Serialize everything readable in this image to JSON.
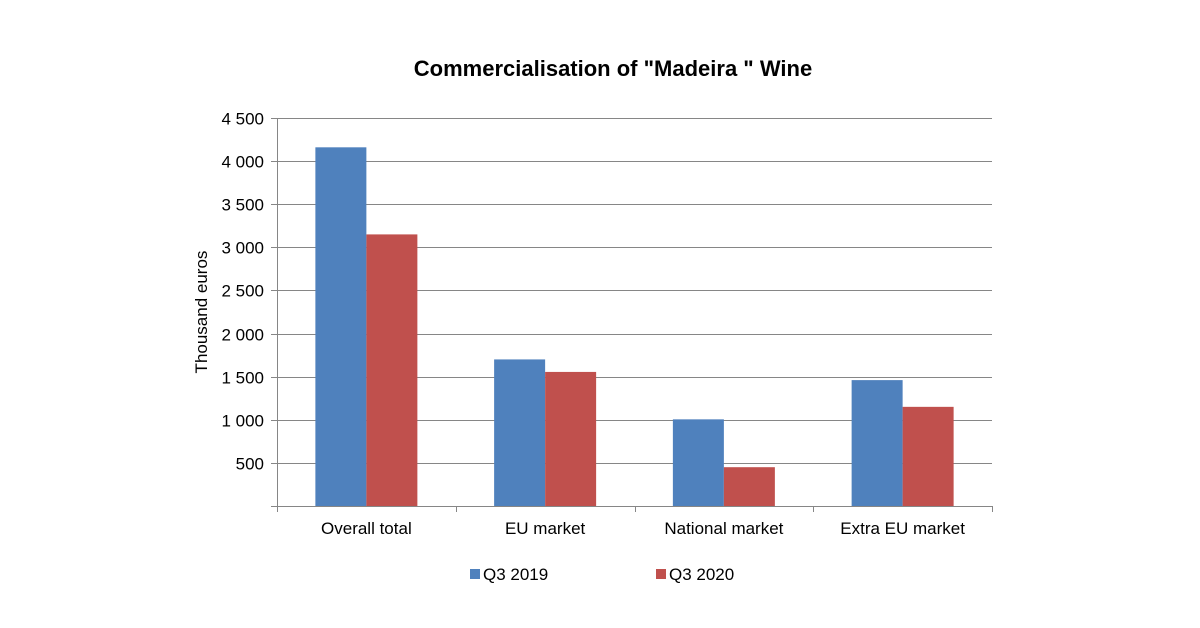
{
  "chart_data": {
    "type": "bar",
    "title": "Commercialisation of \"Madeira \" Wine",
    "ylabel": "Thousand euros",
    "xlabel": "",
    "categories": [
      "Overall total",
      "EU market",
      "National market",
      "Extra EU market"
    ],
    "series": [
      {
        "name": "Q3 2019",
        "color": "#4F81BD",
        "values": [
          4160,
          1700,
          1005,
          1460
        ]
      },
      {
        "name": "Q3 2020",
        "color": "#C0504D",
        "values": [
          3150,
          1555,
          450,
          1150
        ]
      }
    ],
    "ylim": [
      0,
      4500
    ],
    "yticks": [
      {
        "value": 500,
        "label": "500"
      },
      {
        "value": 1000,
        "label": "1 000"
      },
      {
        "value": 1500,
        "label": "1 500"
      },
      {
        "value": 2000,
        "label": "2 000"
      },
      {
        "value": 2500,
        "label": "2 500"
      },
      {
        "value": 3000,
        "label": "3 000"
      },
      {
        "value": 3500,
        "label": "3 500"
      },
      {
        "value": 4000,
        "label": "4 000"
      },
      {
        "value": 4500,
        "label": "4 500"
      }
    ],
    "grid": true,
    "legend": "bottom"
  }
}
